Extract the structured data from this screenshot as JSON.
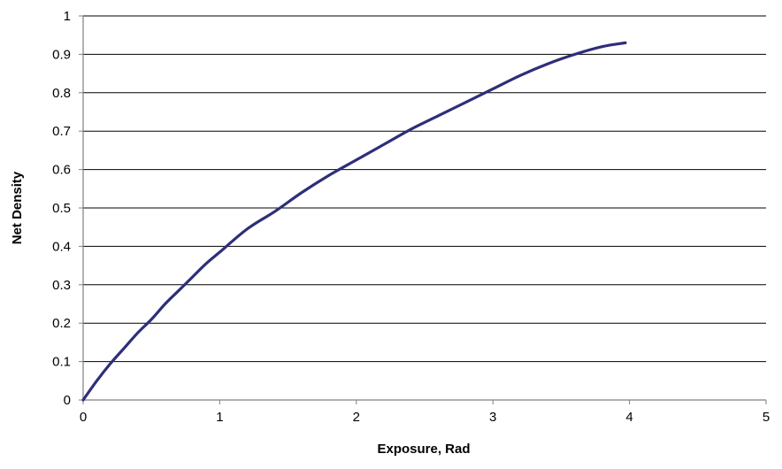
{
  "chart_data": {
    "type": "line",
    "title": "",
    "xlabel": "Exposure, Rad",
    "ylabel": "Net Density",
    "xlim": [
      0,
      5
    ],
    "ylim": [
      0,
      1
    ],
    "x_ticks": [
      0,
      1,
      2,
      3,
      4,
      5
    ],
    "y_ticks": [
      0,
      0.1,
      0.2,
      0.3,
      0.4,
      0.5,
      0.6,
      0.7,
      0.8,
      0.9,
      1
    ],
    "x_tick_labels": [
      "0",
      "1",
      "2",
      "3",
      "4",
      "5"
    ],
    "y_tick_labels": [
      "0",
      "0.1",
      "0.2",
      "0.3",
      "0.4",
      "0.5",
      "0.6",
      "0.7",
      "0.8",
      "0.9",
      "1"
    ],
    "grid": "horizontal",
    "legend": "none",
    "series": [
      {
        "color": "#2e2e7a",
        "x": [
          0,
          0.1,
          0.2,
          0.3,
          0.4,
          0.5,
          0.6,
          0.7,
          0.8,
          0.9,
          1.0,
          1.2,
          1.4,
          1.6,
          1.8,
          2.0,
          2.2,
          2.4,
          2.6,
          2.8,
          3.0,
          3.2,
          3.4,
          3.6,
          3.8,
          3.97
        ],
        "y": [
          0,
          0.05,
          0.095,
          0.135,
          0.175,
          0.21,
          0.25,
          0.285,
          0.32,
          0.355,
          0.385,
          0.445,
          0.49,
          0.54,
          0.585,
          0.625,
          0.665,
          0.705,
          0.74,
          0.775,
          0.81,
          0.845,
          0.875,
          0.9,
          0.92,
          0.93
        ]
      }
    ]
  }
}
